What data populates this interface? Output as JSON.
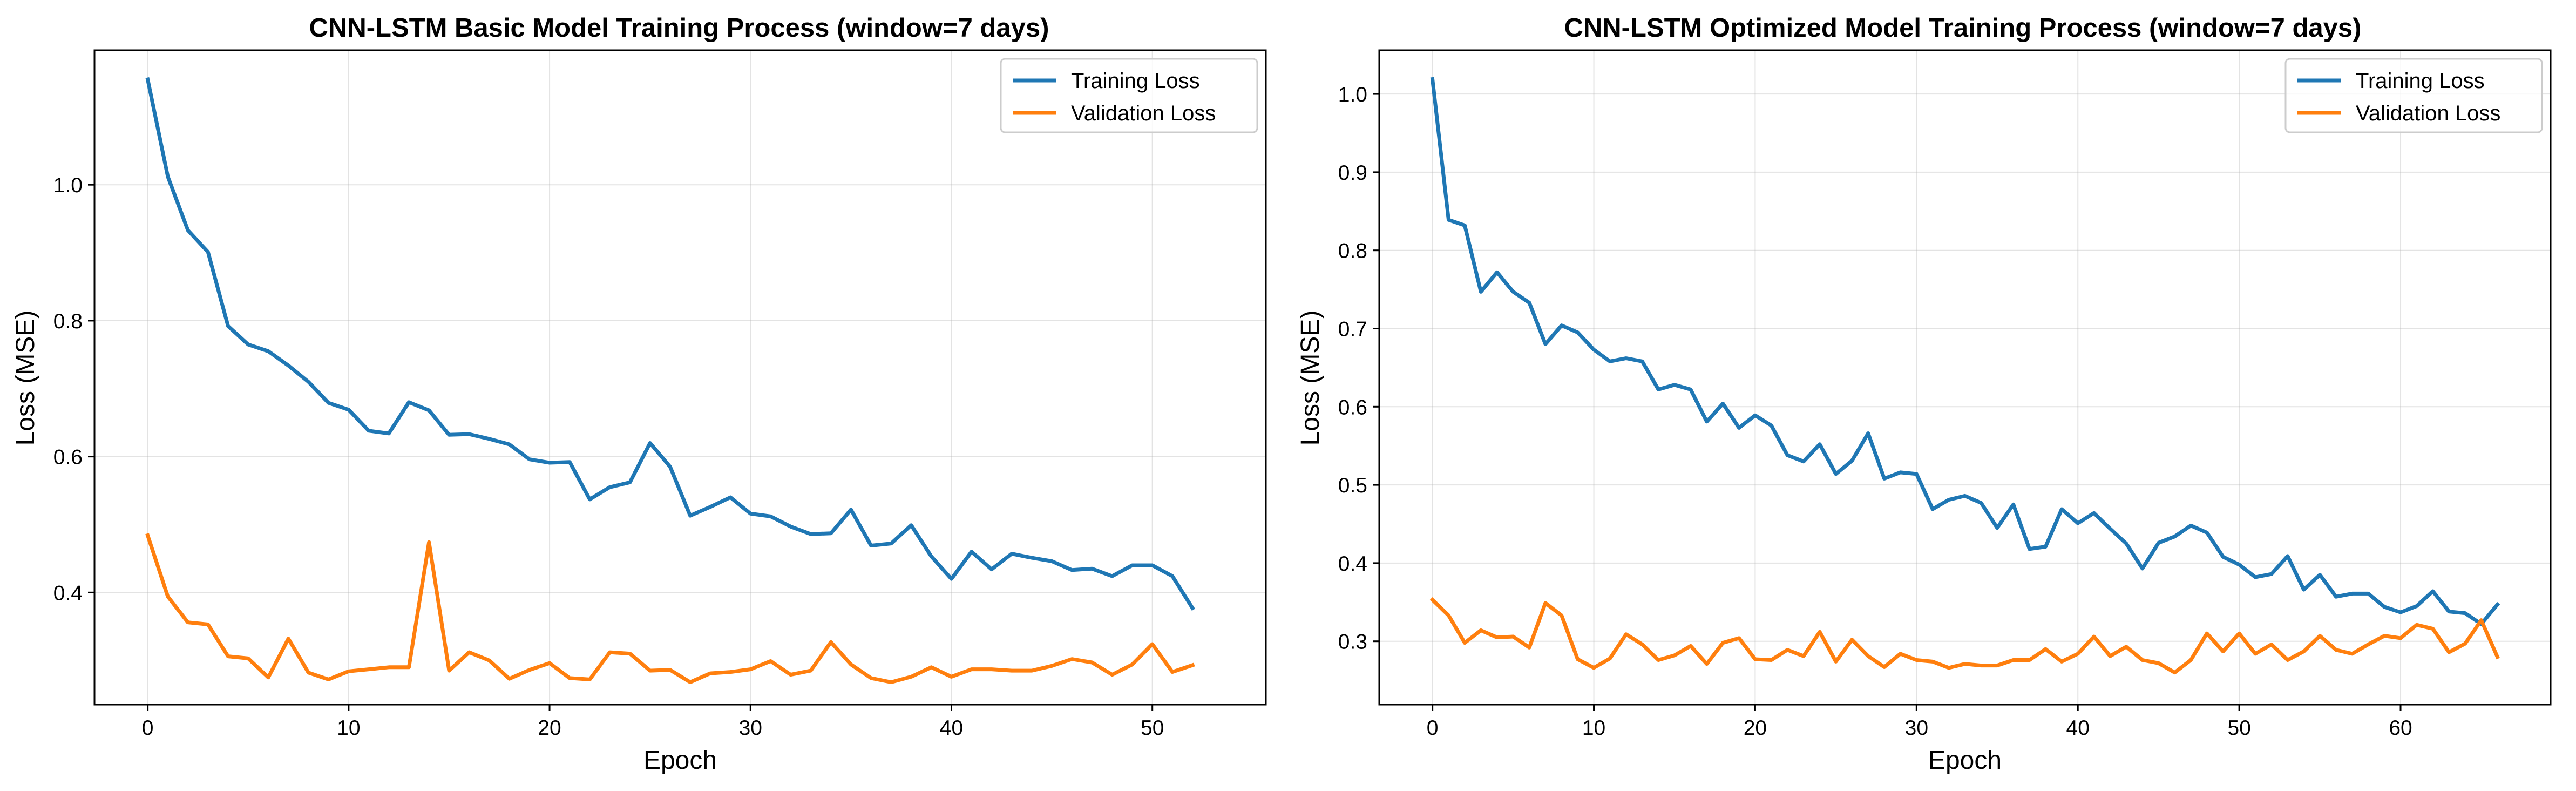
{
  "chart_data": [
    {
      "type": "line",
      "title": "CNN-LSTM Basic Model Training Process (window=7 days)",
      "xlabel": "Epoch",
      "ylabel": "Loss (MSE)",
      "xlim": [
        -2.65,
        55.65
      ],
      "ylim": [
        0.235,
        1.198
      ],
      "xticks": [
        0,
        10,
        20,
        30,
        40,
        50
      ],
      "yticks": [
        0.4,
        0.6,
        0.8,
        1.0
      ],
      "xtick_labels": [
        "0",
        "10",
        "20",
        "30",
        "40",
        "50"
      ],
      "ytick_labels": [
        "0.4",
        "0.6",
        "0.8",
        "1.0"
      ],
      "grid": true,
      "legend_position": "top-right",
      "series": [
        {
          "name": "Training Loss",
          "color": "#1f77b4",
          "values": [
            1.155,
            1.012,
            0.933,
            0.901,
            0.792,
            0.765,
            0.755,
            0.734,
            0.71,
            0.679,
            0.669,
            0.638,
            0.634,
            0.68,
            0.668,
            0.632,
            0.633,
            0.626,
            0.618,
            0.596,
            0.591,
            0.592,
            0.537,
            0.555,
            0.562,
            0.62,
            0.585,
            0.513,
            0.526,
            0.54,
            0.516,
            0.512,
            0.497,
            0.486,
            0.487,
            0.522,
            0.469,
            0.472,
            0.499,
            0.453,
            0.42,
            0.46,
            0.434,
            0.457,
            0.451,
            0.446,
            0.433,
            0.435,
            0.424,
            0.44,
            0.44,
            0.424,
            0.377
          ]
        },
        {
          "name": "Validation Loss",
          "color": "#ff7f0e",
          "values": [
            0.484,
            0.394,
            0.356,
            0.353,
            0.306,
            0.303,
            0.275,
            0.332,
            0.282,
            0.272,
            0.284,
            0.287,
            0.29,
            0.29,
            0.474,
            0.285,
            0.312,
            0.3,
            0.273,
            0.286,
            0.296,
            0.274,
            0.272,
            0.312,
            0.31,
            0.285,
            0.286,
            0.268,
            0.281,
            0.283,
            0.287,
            0.299,
            0.279,
            0.285,
            0.327,
            0.294,
            0.274,
            0.268,
            0.276,
            0.29,
            0.276,
            0.287,
            0.287,
            0.285,
            0.285,
            0.292,
            0.302,
            0.297,
            0.279,
            0.294,
            0.324,
            0.283,
            0.293
          ]
        }
      ]
    },
    {
      "type": "line",
      "title": "CNN-LSTM Optimized Model Training Process (window=7 days)",
      "xlabel": "Epoch",
      "ylabel": "Loss (MSE)",
      "xlim": [
        -3.3,
        69.3
      ],
      "ylim": [
        0.219,
        1.056
      ],
      "xticks": [
        0,
        10,
        20,
        30,
        40,
        50,
        60
      ],
      "yticks": [
        0.3,
        0.4,
        0.5,
        0.6,
        0.7,
        0.8,
        0.9,
        1.0
      ],
      "xtick_labels": [
        "0",
        "10",
        "20",
        "30",
        "40",
        "50",
        "60"
      ],
      "ytick_labels": [
        "0.3",
        "0.4",
        "0.5",
        "0.6",
        "0.7",
        "0.8",
        "0.9",
        "1.0"
      ],
      "grid": true,
      "legend_position": "top-right",
      "series": [
        {
          "name": "Training Loss",
          "color": "#1f77b4",
          "values": [
            1.019,
            0.839,
            0.832,
            0.747,
            0.772,
            0.747,
            0.733,
            0.68,
            0.704,
            0.695,
            0.673,
            0.658,
            0.662,
            0.658,
            0.622,
            0.628,
            0.622,
            0.581,
            0.604,
            0.573,
            0.589,
            0.576,
            0.538,
            0.53,
            0.552,
            0.514,
            0.531,
            0.566,
            0.508,
            0.516,
            0.514,
            0.469,
            0.481,
            0.486,
            0.477,
            0.445,
            0.475,
            0.418,
            0.421,
            0.469,
            0.451,
            0.464,
            0.444,
            0.425,
            0.393,
            0.426,
            0.434,
            0.448,
            0.439,
            0.408,
            0.398,
            0.382,
            0.386,
            0.409,
            0.366,
            0.385,
            0.357,
            0.361,
            0.361,
            0.344,
            0.337,
            0.345,
            0.364,
            0.338,
            0.336,
            0.322,
            0.347
          ]
        },
        {
          "name": "Validation Loss",
          "color": "#ff7f0e",
          "values": [
            0.353,
            0.333,
            0.298,
            0.314,
            0.305,
            0.306,
            0.292,
            0.349,
            0.333,
            0.277,
            0.266,
            0.278,
            0.309,
            0.296,
            0.276,
            0.282,
            0.294,
            0.271,
            0.298,
            0.304,
            0.277,
            0.276,
            0.289,
            0.281,
            0.312,
            0.274,
            0.302,
            0.281,
            0.267,
            0.284,
            0.276,
            0.274,
            0.266,
            0.271,
            0.269,
            0.269,
            0.276,
            0.276,
            0.29,
            0.274,
            0.284,
            0.306,
            0.281,
            0.293,
            0.276,
            0.272,
            0.26,
            0.276,
            0.31,
            0.287,
            0.31,
            0.284,
            0.296,
            0.276,
            0.287,
            0.307,
            0.289,
            0.284,
            0.296,
            0.307,
            0.304,
            0.321,
            0.316,
            0.286,
            0.297,
            0.327,
            0.28
          ]
        }
      ]
    }
  ]
}
